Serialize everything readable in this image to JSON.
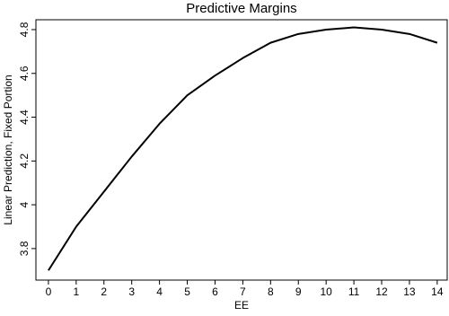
{
  "chart_data": {
    "type": "line",
    "title": "Predictive Margins",
    "x_label": "EE",
    "y_label": "Linear Prediction, Fixed Portion",
    "x": [
      0,
      1,
      2,
      3,
      4,
      5,
      6,
      7,
      8,
      9,
      10,
      11,
      12,
      13,
      14
    ],
    "series": [
      {
        "color": "#000000",
        "values": [
          3.7,
          3.9,
          4.06,
          4.22,
          4.37,
          4.5,
          4.59,
          4.67,
          4.74,
          4.78,
          4.8,
          4.81,
          4.8,
          4.78,
          4.74
        ]
      }
    ],
    "xlim": [
      -0.45,
      14.36
    ],
    "ylim": [
      3.656,
      4.845
    ],
    "xticks": [
      0,
      1,
      2,
      3,
      4,
      5,
      6,
      7,
      8,
      9,
      10,
      11,
      12,
      13,
      14
    ],
    "yticks": [
      3.8,
      4,
      4.2,
      4.4,
      4.6,
      4.8
    ]
  }
}
